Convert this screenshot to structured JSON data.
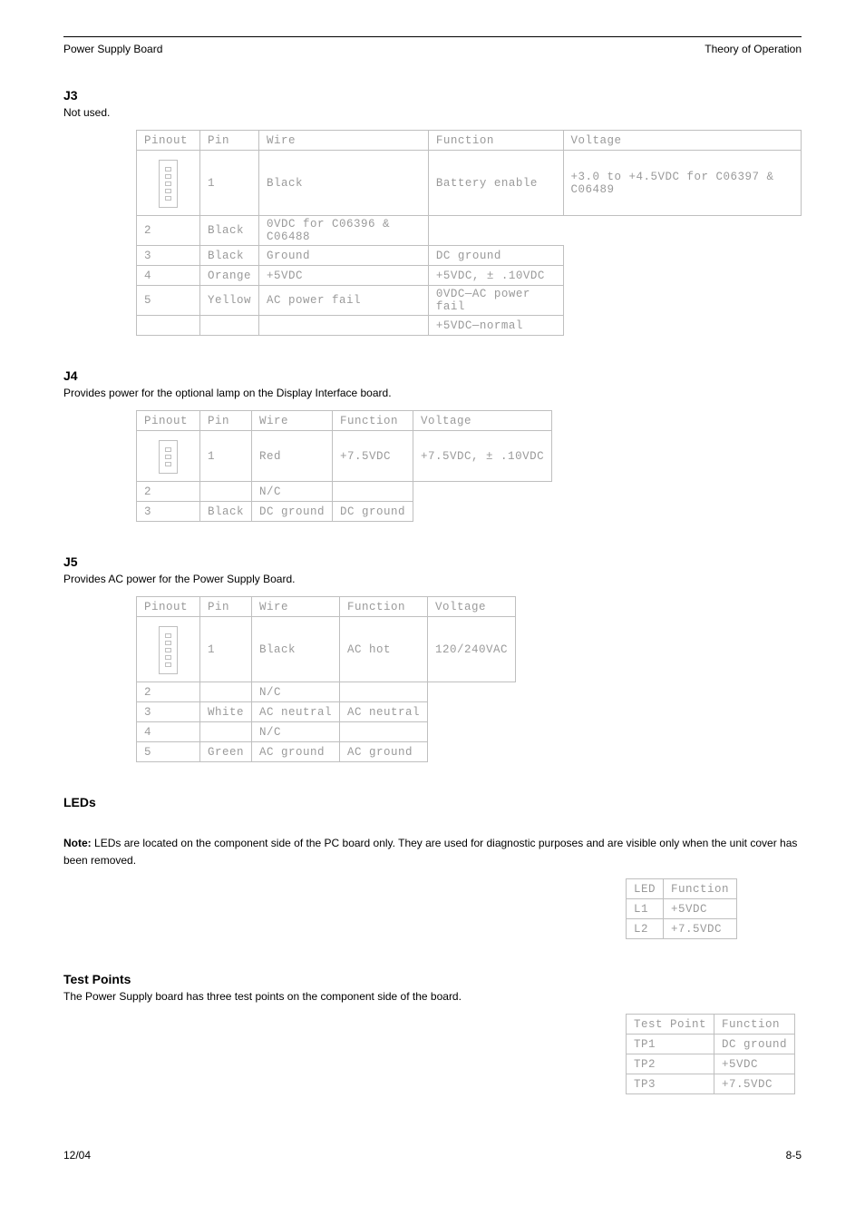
{
  "header": {
    "left": "Power Supply Board",
    "right": "Theory of Operation"
  },
  "j3": {
    "heading": "J3",
    "sub": "Not used.",
    "cols": [
      "Pinout",
      "Pin",
      "Wire",
      "Function",
      "Voltage"
    ],
    "rows": [
      {
        "pin": "1",
        "wire": "Black",
        "func": "Battery enable",
        "volt": "+3.0 to +4.5VDC for C06397 & C06489"
      },
      {
        "pin": "2",
        "wire": "Black",
        "func": "",
        "volt": "0VDC for C06396 & C06488"
      },
      {
        "pin": "3",
        "wire": "Black",
        "func": "Ground",
        "volt": "DC ground"
      },
      {
        "pin": "4",
        "wire": "Orange",
        "func": "+5VDC",
        "volt": "+5VDC, ± .10VDC"
      },
      {
        "pin": "5",
        "wire": "Yellow",
        "func": "AC power fail",
        "volt": "0VDC—AC power fail"
      },
      {
        "pin": "",
        "wire": "",
        "func": "",
        "volt": "+5VDC—normal"
      }
    ],
    "pin_count": 5
  },
  "j4": {
    "heading": "J4",
    "sub": "Provides power for the optional lamp on the Display Interface board.",
    "cols": [
      "Pinout",
      "Pin",
      "Wire",
      "Function",
      "Voltage"
    ],
    "rows": [
      {
        "pin": "1",
        "wire": "Red",
        "func": "+7.5VDC",
        "volt": "+7.5VDC, ± .10VDC"
      },
      {
        "pin": "2",
        "wire": "",
        "func": "N/C",
        "volt": ""
      },
      {
        "pin": "3",
        "wire": "Black",
        "func": "DC ground",
        "volt": "DC ground"
      }
    ],
    "pin_count": 3
  },
  "j5": {
    "heading": "J5",
    "sub": "Provides AC power for the Power Supply Board.",
    "cols": [
      "Pinout",
      "Pin",
      "Wire",
      "Function",
      "Voltage"
    ],
    "rows": [
      {
        "pin": "1",
        "wire": "Black",
        "func": "AC hot",
        "volt": "120/240VAC"
      },
      {
        "pin": "2",
        "wire": "",
        "func": "N/C",
        "volt": ""
      },
      {
        "pin": "3",
        "wire": "White",
        "func": "AC neutral",
        "volt": "AC neutral"
      },
      {
        "pin": "4",
        "wire": "",
        "func": "N/C",
        "volt": ""
      },
      {
        "pin": "5",
        "wire": "Green",
        "func": "AC ground",
        "volt": "AC ground"
      }
    ],
    "pin_count": 5
  },
  "leds": {
    "heading": "LEDs",
    "note_label": "Note:",
    "note_body": "LEDs are located on the component side of the PC board only. They are used for diagnostic purposes and are visible only when the unit cover has been removed.",
    "cols": [
      "LED",
      "Function"
    ],
    "rows": [
      {
        "a": "L1",
        "b": "+5VDC"
      },
      {
        "a": "L2",
        "b": "+7.5VDC"
      }
    ]
  },
  "tps": {
    "heading": "Test Points",
    "sub": "The Power Supply board has three test points on the component side of the board.",
    "cols": [
      "Test Point",
      "Function"
    ],
    "rows": [
      {
        "a": "TP1",
        "b": "DC ground"
      },
      {
        "a": "TP2",
        "b": "+5VDC"
      },
      {
        "a": "TP3",
        "b": "+7.5VDC"
      }
    ]
  },
  "footer": {
    "left": "12/04",
    "right": "8-5"
  }
}
